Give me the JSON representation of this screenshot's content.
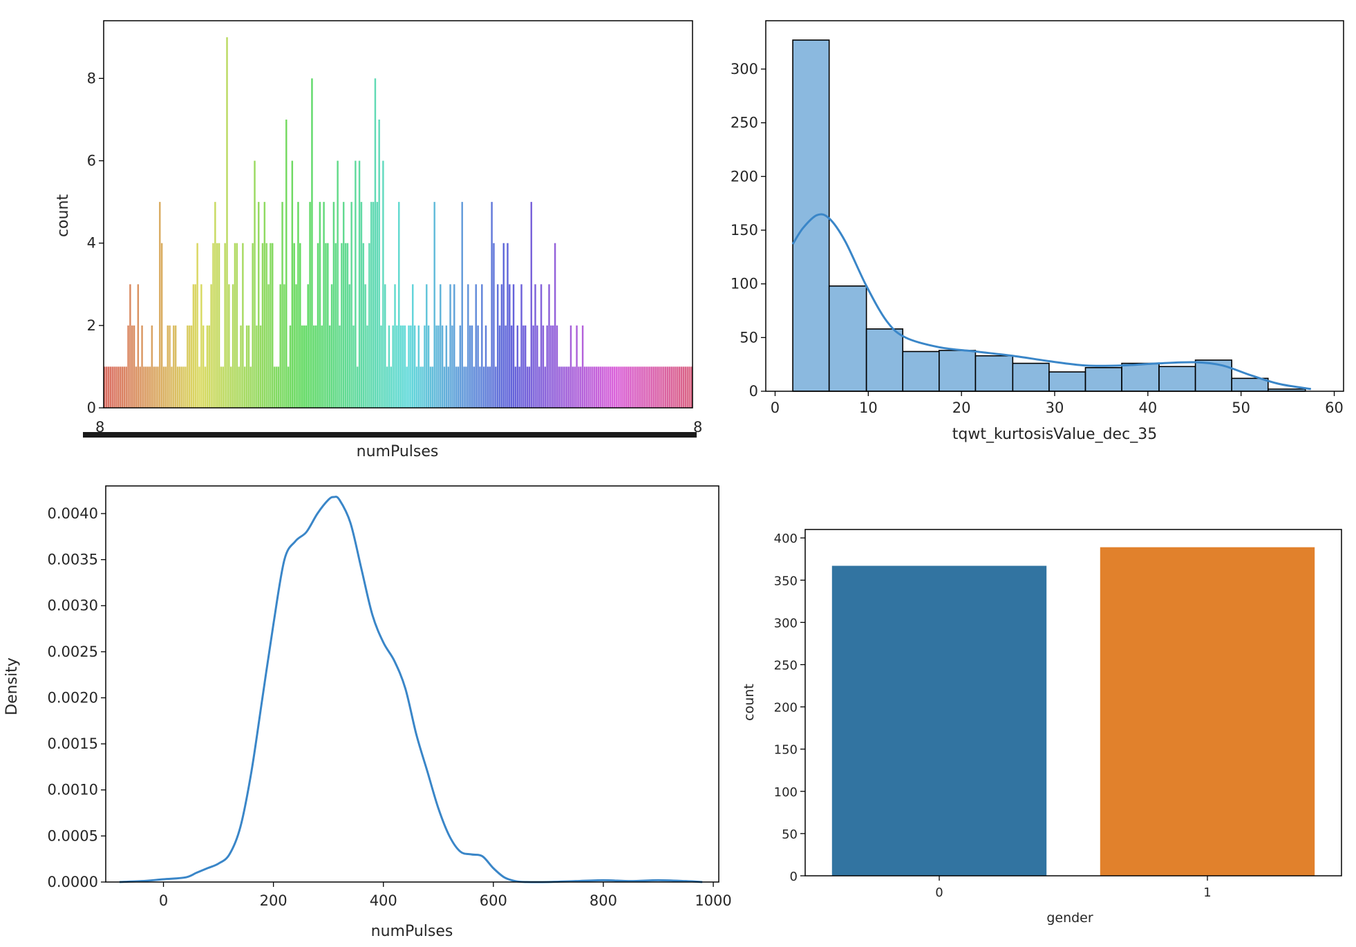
{
  "chart_data": [
    {
      "type": "bar",
      "variant": "countplot",
      "title": "",
      "xlabel": "numPulses",
      "ylabel": "count",
      "ylim": [
        0,
        9.4
      ],
      "yticks": [
        0,
        2,
        4,
        6,
        8
      ],
      "num_categories": 290,
      "counts": [
        1,
        1,
        1,
        1,
        1,
        1,
        1,
        1,
        1,
        1,
        1,
        1,
        2,
        3,
        2,
        2,
        1,
        3,
        1,
        2,
        1,
        1,
        1,
        1,
        2,
        1,
        1,
        1,
        5,
        4,
        1,
        1,
        2,
        2,
        1,
        2,
        2,
        1,
        1,
        1,
        1,
        1,
        2,
        2,
        2,
        3,
        3,
        4,
        1,
        3,
        2,
        1,
        2,
        2,
        3,
        4,
        5,
        4,
        4,
        1,
        1,
        4,
        9,
        3,
        1,
        3,
        4,
        4,
        1,
        2,
        4,
        1,
        2,
        2,
        1,
        4,
        6,
        2,
        5,
        2,
        4,
        5,
        4,
        3,
        4,
        4,
        1,
        1,
        1,
        3,
        5,
        3,
        7,
        1,
        2,
        6,
        4,
        3,
        5,
        4,
        2,
        2,
        2,
        3,
        5,
        8,
        2,
        2,
        4,
        5,
        2,
        5,
        4,
        4,
        2,
        3,
        5,
        4,
        6,
        2,
        4,
        5,
        4,
        4,
        3,
        5,
        2,
        6,
        1,
        6,
        5,
        4,
        3,
        2,
        4,
        5,
        5,
        8,
        5,
        7,
        2,
        6,
        3,
        1,
        2,
        1,
        2,
        3,
        2,
        5,
        2,
        2,
        2,
        1,
        2,
        2,
        3,
        2,
        1,
        2,
        1,
        1,
        2,
        3,
        2,
        1,
        1,
        5,
        2,
        2,
        3,
        2,
        1,
        2,
        1,
        3,
        2,
        3,
        1,
        1,
        2,
        5,
        1,
        1,
        3,
        2,
        2,
        1,
        3,
        2,
        1,
        3,
        1,
        2,
        1,
        1,
        5,
        4,
        1,
        3,
        2,
        3,
        4,
        2,
        4,
        3,
        2,
        3,
        1,
        2,
        1,
        3,
        2,
        2,
        1,
        1,
        5,
        2,
        3,
        2,
        1,
        3,
        2,
        1,
        2,
        3,
        2,
        2,
        4,
        2,
        1,
        1,
        1,
        1,
        1,
        1,
        2,
        1,
        1,
        2,
        1,
        1,
        2,
        1,
        1,
        1,
        1,
        1,
        1,
        1,
        1,
        1,
        1,
        1,
        1,
        1,
        1,
        1,
        1,
        1,
        1,
        1,
        1,
        1,
        1,
        1,
        1,
        1,
        1,
        1,
        1,
        1,
        1,
        1,
        1,
        1,
        1,
        1,
        1,
        1,
        1,
        1,
        1,
        1,
        1,
        1,
        1,
        1,
        1,
        1,
        1,
        1,
        1,
        1,
        1,
        1,
        1,
        1
      ],
      "palette": "husl",
      "xtick_labels_overlapping": "8"
    },
    {
      "type": "bar",
      "variant": "histogram_with_kde",
      "title": "",
      "xlabel": "tqwt_kurtosisValue_dec_35",
      "ylabel": "",
      "xlim": [
        -1,
        61
      ],
      "ylim": [
        0,
        345
      ],
      "xticks": [
        0,
        10,
        20,
        30,
        40,
        50,
        60
      ],
      "yticks": [
        0,
        50,
        100,
        150,
        200,
        250,
        300
      ],
      "bin_edges": [
        1.9,
        5.8,
        9.8,
        13.7,
        17.6,
        21.5,
        25.5,
        29.4,
        33.3,
        37.2,
        41.2,
        45.1,
        49.0,
        52.9,
        56.9
      ],
      "values": [
        327,
        98,
        58,
        37,
        38,
        33,
        26,
        18,
        22,
        26,
        23,
        29,
        12,
        2
      ],
      "kde_x": [
        1.9,
        3,
        4.5,
        5.8,
        7.5,
        9.8,
        12,
        14,
        17.6,
        21.5,
        25.5,
        29.4,
        33.3,
        37.2,
        41.2,
        45.1,
        48,
        51,
        54,
        57.5
      ],
      "kde_y": [
        137,
        152,
        164,
        161,
        140,
        98,
        65,
        50,
        41,
        37,
        33,
        28,
        24,
        24,
        26,
        27,
        24,
        15,
        7,
        2
      ],
      "color": "#5a9bd1",
      "line_color": "#3a86c8"
    },
    {
      "type": "line",
      "variant": "kde",
      "title": "",
      "xlabel": "numPulses",
      "ylabel": "Density",
      "xlim": [
        -105,
        1010
      ],
      "ylim": [
        0,
        0.0043
      ],
      "xticks": [
        0,
        200,
        400,
        600,
        800,
        1000
      ],
      "yticks": [
        0.0,
        0.0005,
        0.001,
        0.0015,
        0.002,
        0.0025,
        0.003,
        0.0035,
        0.004
      ],
      "ytick_labels": [
        "0.0000",
        "0.0005",
        "0.0010",
        "0.0015",
        "0.0020",
        "0.0025",
        "0.0030",
        "0.0035",
        "0.0040"
      ],
      "x": [
        -80,
        -40,
        0,
        40,
        60,
        80,
        100,
        120,
        140,
        160,
        180,
        200,
        220,
        240,
        260,
        280,
        300,
        310,
        320,
        340,
        360,
        380,
        400,
        420,
        440,
        460,
        480,
        500,
        520,
        540,
        560,
        580,
        600,
        620,
        640,
        660,
        700,
        750,
        800,
        850,
        900,
        950,
        980
      ],
      "y": [
        0.0,
        1e-05,
        3e-05,
        5e-05,
        0.0001,
        0.00015,
        0.0002,
        0.0003,
        0.0006,
        0.0012,
        0.002,
        0.0028,
        0.0035,
        0.0037,
        0.0038,
        0.004,
        0.00415,
        0.00418,
        0.00415,
        0.0039,
        0.0034,
        0.0029,
        0.0026,
        0.0024,
        0.0021,
        0.0016,
        0.0012,
        0.0008,
        0.0005,
        0.00033,
        0.0003,
        0.00028,
        0.00015,
        5e-05,
        1e-05,
        0.0,
        0.0,
        1e-05,
        2e-05,
        1e-05,
        2e-05,
        1e-05,
        0.0
      ],
      "color": "#3a86c8"
    },
    {
      "type": "bar",
      "variant": "countplot",
      "title": "",
      "xlabel": "gender",
      "ylabel": "count",
      "categories": [
        "0",
        "1"
      ],
      "values": [
        367,
        389
      ],
      "ylim": [
        0,
        410
      ],
      "yticks": [
        0,
        50,
        100,
        150,
        200,
        250,
        300,
        350,
        400
      ],
      "colors": [
        "#3274a1",
        "#e1812c"
      ]
    }
  ]
}
